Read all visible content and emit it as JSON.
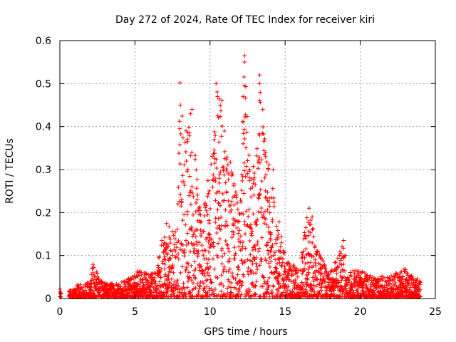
{
  "chart_data": {
    "type": "scatter",
    "title": "Day 272 of 2024, Rate Of TEC Index for receiver kiri",
    "xlabel": "GPS time / hours",
    "ylabel": "ROTI / TECUs",
    "xlim": [
      0,
      25
    ],
    "ylim": [
      0,
      0.6
    ],
    "xticks": [
      0,
      5,
      10,
      15,
      20,
      25
    ],
    "yticks": [
      0,
      0.1,
      0.2,
      0.3,
      0.4,
      0.5,
      0.6
    ],
    "grid": true,
    "marker": "plus",
    "color": "#ff0000",
    "envelope": {
      "x": [
        0,
        0.5,
        1,
        2,
        2.2,
        3,
        4,
        4.8,
        5,
        5.5,
        6,
        6.5,
        7,
        7.5,
        7.8,
        8,
        8.3,
        8.8,
        9,
        9.5,
        10,
        10.3,
        10.7,
        11,
        11.5,
        12,
        12.3,
        12.6,
        13,
        13.4,
        13.8,
        14,
        14.5,
        15,
        15.5,
        16,
        16.4,
        16.8,
        17,
        18,
        18.9,
        19,
        20,
        21,
        22,
        23,
        24
      ],
      "y": [
        0.025,
        0.015,
        0.03,
        0.04,
        0.08,
        0.035,
        0.04,
        0.05,
        0.075,
        0.065,
        0.06,
        0.08,
        0.18,
        0.16,
        0.16,
        0.5,
        0.39,
        0.44,
        0.37,
        0.2,
        0.33,
        0.5,
        0.46,
        0.38,
        0.3,
        0.2,
        0.565,
        0.36,
        0.3,
        0.52,
        0.33,
        0.3,
        0.2,
        0.1,
        0.08,
        0.07,
        0.21,
        0.19,
        0.12,
        0.06,
        0.135,
        0.06,
        0.07,
        0.05,
        0.055,
        0.07,
        0.04
      ]
    },
    "outliers": [
      {
        "x": 8.0,
        "y": 0.502
      },
      {
        "x": 8.8,
        "y": 0.44
      },
      {
        "x": 8.7,
        "y": 0.43
      },
      {
        "x": 8.4,
        "y": 0.39
      },
      {
        "x": 10.4,
        "y": 0.5
      },
      {
        "x": 10.5,
        "y": 0.47
      },
      {
        "x": 10.8,
        "y": 0.46
      },
      {
        "x": 10.5,
        "y": 0.425
      },
      {
        "x": 12.3,
        "y": 0.565
      },
      {
        "x": 12.3,
        "y": 0.55
      },
      {
        "x": 12.2,
        "y": 0.47
      },
      {
        "x": 12.2,
        "y": 0.36
      },
      {
        "x": 13.3,
        "y": 0.52
      },
      {
        "x": 13.3,
        "y": 0.5
      },
      {
        "x": 13.3,
        "y": 0.46
      },
      {
        "x": 13.3,
        "y": 0.38
      },
      {
        "x": 13.7,
        "y": 0.33
      },
      {
        "x": 14.2,
        "y": 0.3
      },
      {
        "x": 16.6,
        "y": 0.21
      },
      {
        "x": 16.8,
        "y": 0.19
      },
      {
        "x": 18.9,
        "y": 0.135
      },
      {
        "x": 19.0,
        "y": 0.1
      }
    ]
  }
}
